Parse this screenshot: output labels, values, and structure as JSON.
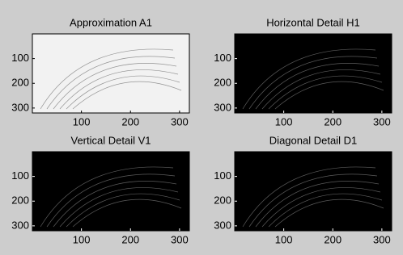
{
  "chart_data": [
    {
      "type": "image",
      "title": "Approximation A1",
      "color": "#f2f2f2",
      "xlim": [
        0,
        320
      ],
      "ylim": [
        320,
        0
      ],
      "xticks": [
        100,
        200,
        300
      ],
      "yticks": [
        100,
        200,
        300
      ]
    },
    {
      "type": "image",
      "title": "Horizontal Detail H1",
      "color": "#000000",
      "xlim": [
        0,
        320
      ],
      "ylim": [
        320,
        0
      ],
      "xticks": [
        100,
        200,
        300
      ],
      "yticks": [
        100,
        200,
        300
      ]
    },
    {
      "type": "image",
      "title": "Vertical Detail V1",
      "color": "#000000",
      "xlim": [
        0,
        320
      ],
      "ylim": [
        320,
        0
      ],
      "xticks": [
        100,
        200,
        300
      ],
      "yticks": [
        100,
        200,
        300
      ]
    },
    {
      "type": "image",
      "title": "Diagonal Detail D1",
      "color": "#000000",
      "xlim": [
        0,
        320
      ],
      "ylim": [
        320,
        0
      ],
      "xticks": [
        100,
        200,
        300
      ],
      "yticks": [
        100,
        200,
        300
      ]
    }
  ]
}
